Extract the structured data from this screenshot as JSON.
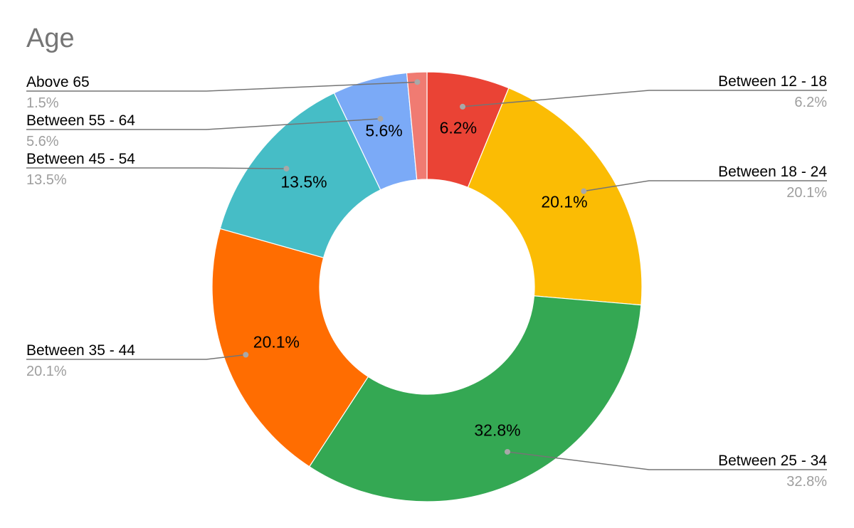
{
  "chart_data": {
    "type": "pie",
    "subtype": "donut",
    "title": "Age",
    "categories": [
      "Between 12 - 18",
      "Between 18 - 24",
      "Between 25 - 34",
      "Between 35 - 44",
      "Between 45 - 54",
      "Between 55 - 64",
      "Above 65"
    ],
    "values": [
      6.2,
      20.1,
      32.8,
      20.1,
      13.5,
      5.6,
      1.5
    ],
    "slice_labels": [
      "6.2%",
      "20.1%",
      "32.8%",
      "20.1%",
      "13.5%",
      "5.6%",
      "1.5%"
    ],
    "colors": [
      "#ea4335",
      "#fbbc04",
      "#34a853",
      "#ff6d01",
      "#46bdc6",
      "#7baaf7",
      "#f07b72"
    ],
    "legend": "callouts"
  }
}
